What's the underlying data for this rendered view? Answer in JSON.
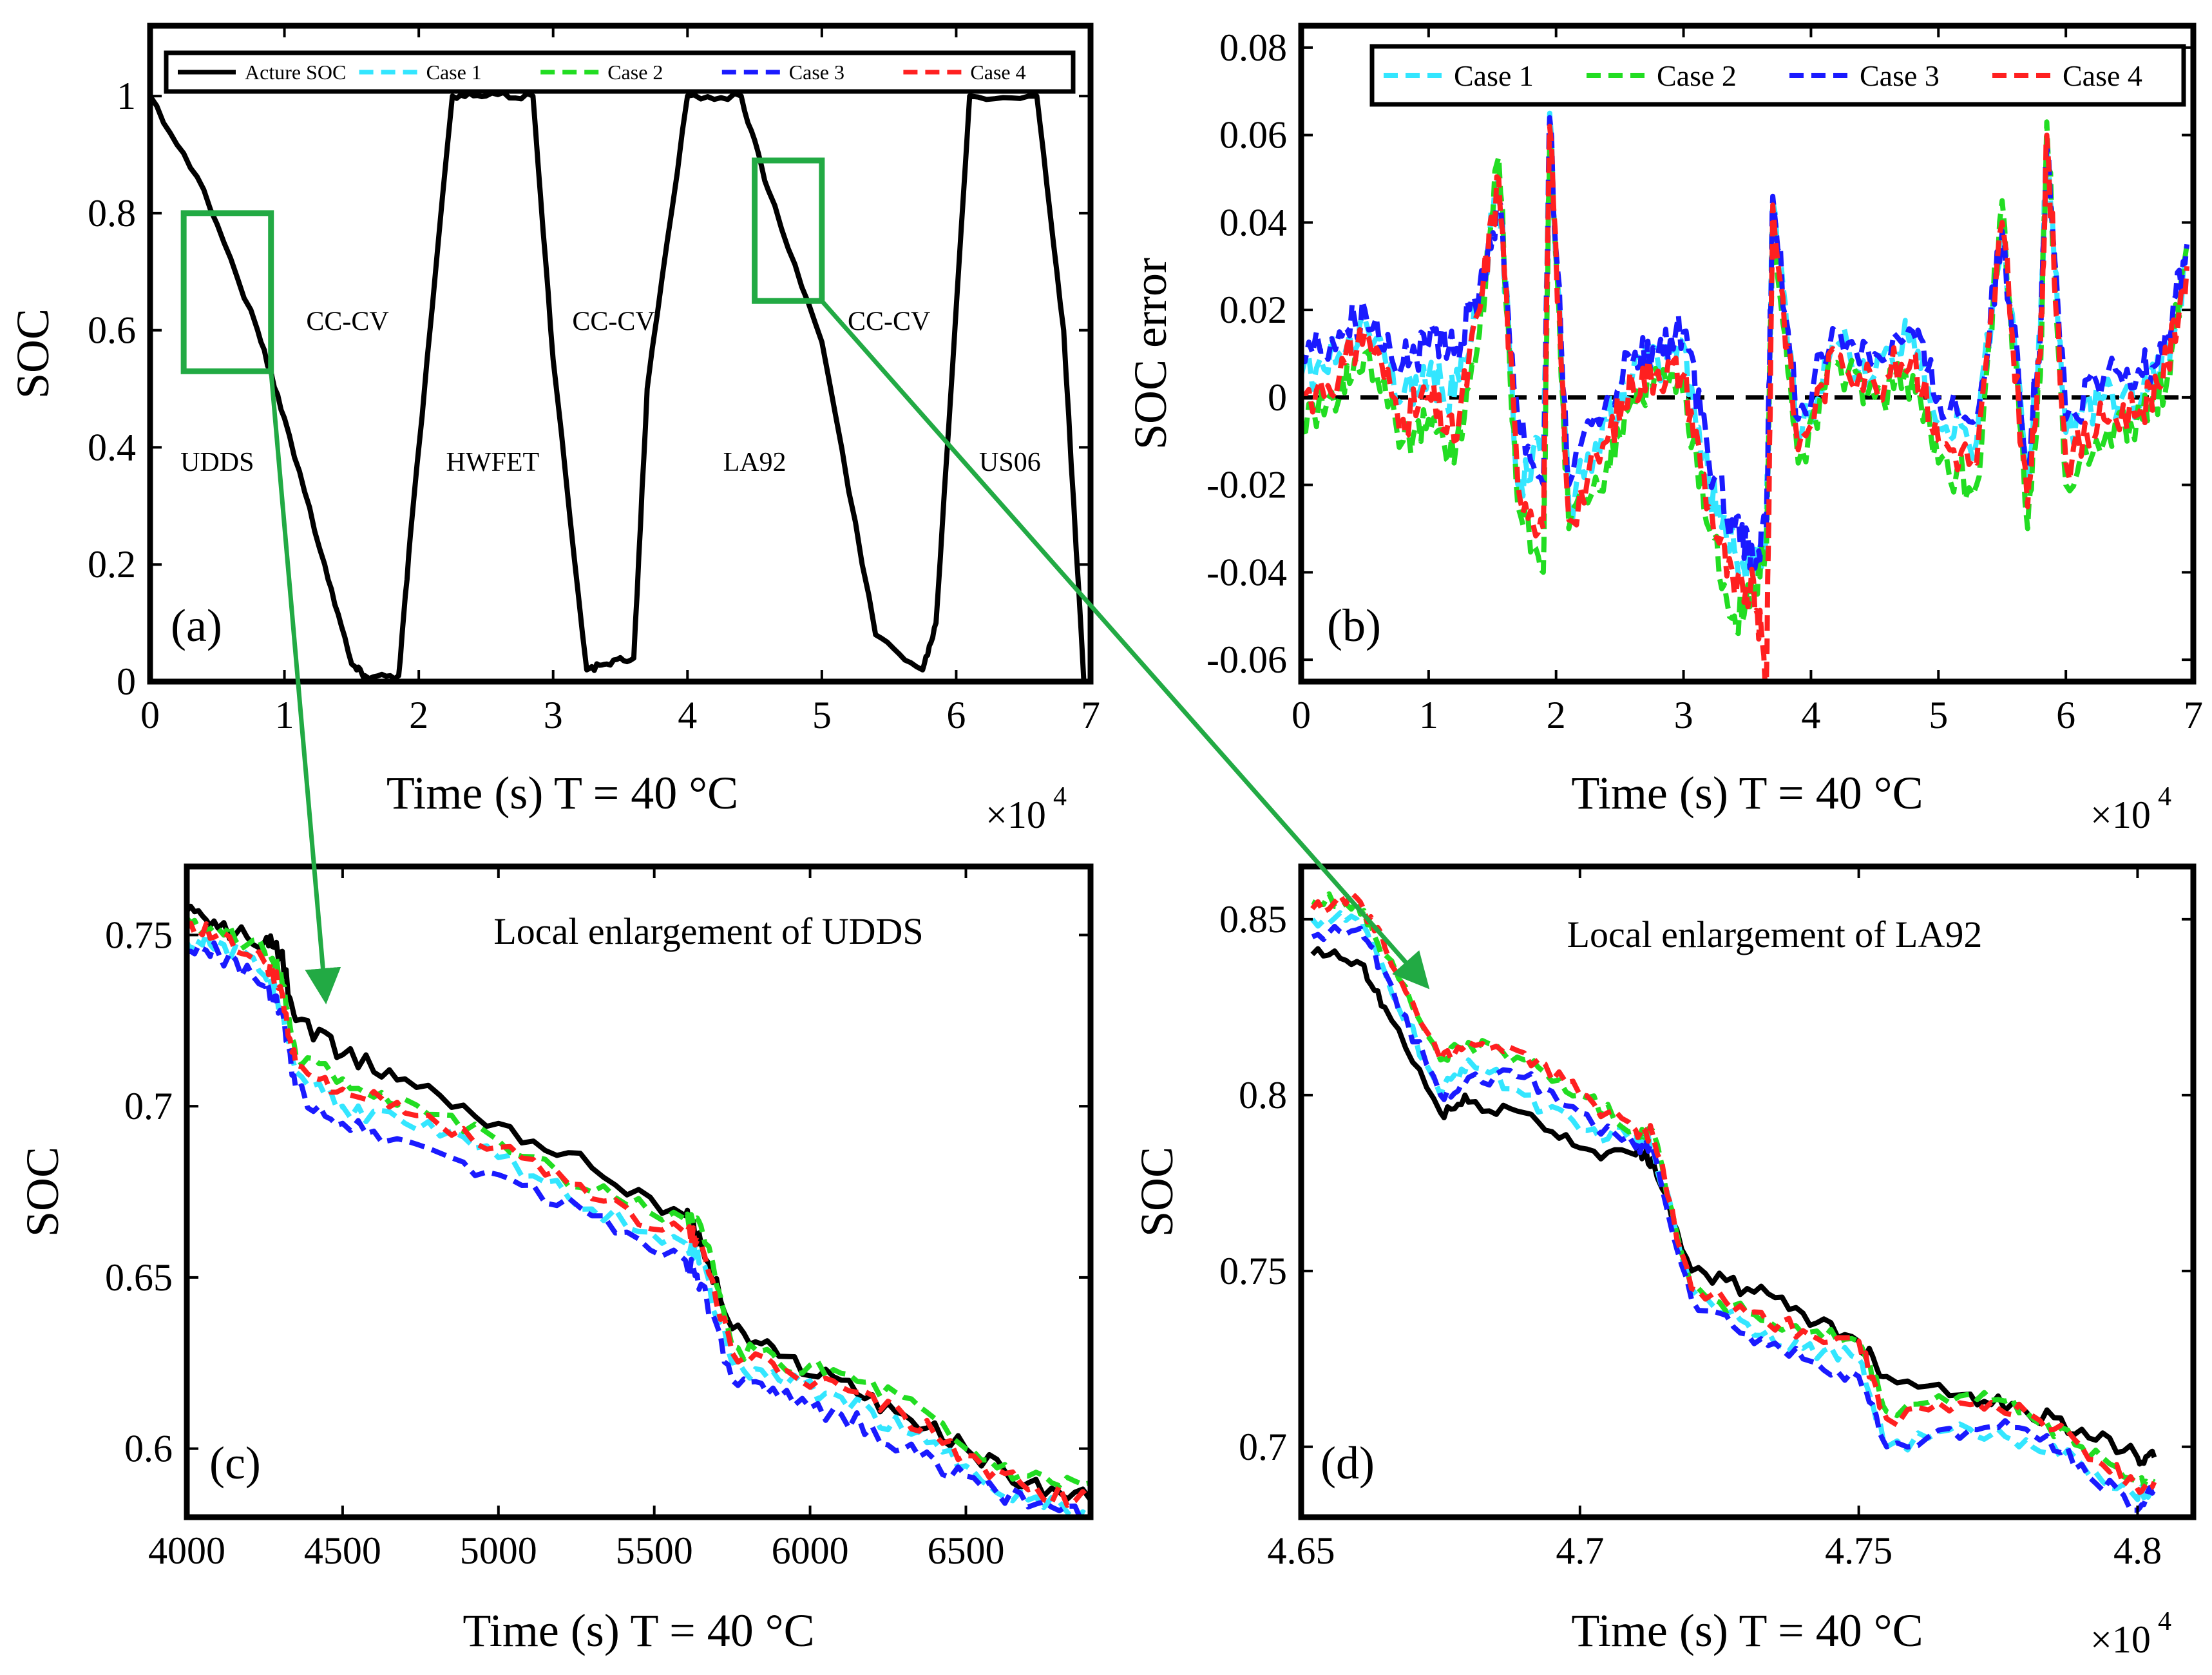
{
  "colors": {
    "actual": "#000000",
    "case1": "#33e6ff",
    "case2": "#22dd22",
    "case3": "#1a1aff",
    "case4": "#ff2020",
    "highlight": "#22aa44"
  },
  "chart_data": [
    {
      "id": "a",
      "type": "line",
      "panel_label": "(a)",
      "xlabel": "Time (s)    T = 40 °C",
      "ylabel": "SOC",
      "x_multiplier": "×10",
      "x_multiplier_exp": "4",
      "xlim": [
        0,
        7
      ],
      "ylim": [
        0,
        1.12
      ],
      "xticks": [
        0,
        1,
        2,
        3,
        4,
        5,
        6,
        7
      ],
      "xtick_labels": [
        "0",
        "1",
        "2",
        "3",
        "4",
        "5",
        "6",
        "7"
      ],
      "yticks": [
        0,
        0.2,
        0.4,
        0.6,
        0.8,
        1
      ],
      "ytick_labels": [
        "0",
        "0.2",
        "0.4",
        "0.6",
        "0.8",
        "1"
      ],
      "legend": [
        "Acture SOC",
        "Case 1",
        "Case 2",
        "Case 3",
        "Case 4"
      ],
      "legend_position": "top",
      "annotations": [
        {
          "text": "UDDS",
          "x": 0.5,
          "y": 0.36
        },
        {
          "text": "CC-CV",
          "x": 1.47,
          "y": 0.6
        },
        {
          "text": "HWFET",
          "x": 2.55,
          "y": 0.36
        },
        {
          "text": "CC-CV",
          "x": 3.45,
          "y": 0.6
        },
        {
          "text": "LA92",
          "x": 4.5,
          "y": 0.36
        },
        {
          "text": "CC-CV",
          "x": 5.5,
          "y": 0.6
        },
        {
          "text": "US06",
          "x": 6.4,
          "y": 0.36
        }
      ],
      "x": [
        0,
        0.4,
        0.8,
        1.0,
        1.3,
        1.5,
        1.6,
        1.85,
        1.95,
        2.25,
        2.5,
        2.85,
        3.0,
        3.25,
        3.4,
        3.6,
        3.7,
        4.0,
        4.4,
        4.6,
        5.0,
        5.4,
        5.75,
        5.85,
        6.1,
        6.6,
        6.8,
        6.95
      ],
      "series": [
        {
          "name": "Acture SOC",
          "values": [
            1.0,
            0.84,
            0.6,
            0.45,
            0.2,
            0.03,
            0.01,
            0.01,
            0.28,
            1.0,
            1.0,
            1.0,
            0.55,
            0.02,
            0.03,
            0.04,
            0.5,
            1.0,
            1.0,
            0.84,
            0.58,
            0.08,
            0.02,
            0.1,
            1.0,
            1.0,
            0.6,
            0.0
          ]
        }
      ]
    },
    {
      "id": "b",
      "type": "line",
      "panel_label": "(b)",
      "xlabel": "Time (s)    T = 40 °C",
      "ylabel": "SOC error",
      "x_multiplier": "×10",
      "x_multiplier_exp": "4",
      "xlim": [
        0,
        7
      ],
      "ylim": [
        -0.065,
        0.085
      ],
      "xticks": [
        0,
        1,
        2,
        3,
        4,
        5,
        6,
        7
      ],
      "xtick_labels": [
        "0",
        "1",
        "2",
        "3",
        "4",
        "5",
        "6",
        "7"
      ],
      "yticks": [
        -0.06,
        -0.04,
        -0.02,
        0,
        0.02,
        0.04,
        0.06,
        0.08
      ],
      "ytick_labels": [
        "-0.06",
        "-0.04",
        "-0.02",
        "0",
        "0.02",
        "0.04",
        "0.06",
        "0.08"
      ],
      "legend": [
        "Case 1",
        "Case 2",
        "Case 3",
        "Case 4"
      ],
      "legend_position": "top",
      "x": [
        0,
        0.3,
        0.5,
        0.8,
        1.0,
        1.2,
        1.4,
        1.55,
        1.7,
        1.9,
        1.95,
        2.1,
        2.4,
        2.6,
        2.8,
        3.0,
        3.2,
        3.4,
        3.55,
        3.65,
        3.7,
        3.9,
        4.2,
        4.5,
        4.8,
        5.0,
        5.3,
        5.5,
        5.7,
        5.8,
        5.85,
        6.0,
        6.3,
        6.6,
        6.8,
        6.95
      ],
      "series": [
        {
          "name": "Case 1",
          "values": [
            0.005,
            0.01,
            0.018,
            0.0,
            0.005,
            0.0,
            0.02,
            0.05,
            -0.02,
            -0.01,
            0.065,
            -0.025,
            -0.005,
            0.005,
            0.008,
            0.012,
            -0.02,
            -0.035,
            -0.04,
            -0.03,
            0.045,
            -0.01,
            0.013,
            0.005,
            0.015,
            -0.005,
            -0.01,
            0.04,
            -0.02,
            0.015,
            0.058,
            -0.008,
            0.0,
            0.0,
            0.01,
            0.03
          ]
        },
        {
          "name": "Case 2",
          "values": [
            -0.005,
            0.0,
            0.01,
            -0.01,
            -0.005,
            -0.015,
            0.015,
            0.055,
            -0.025,
            -0.04,
            0.06,
            -0.03,
            -0.015,
            0.0,
            0.005,
            0.0,
            -0.03,
            -0.05,
            -0.045,
            -0.035,
            0.04,
            -0.015,
            0.008,
            0.0,
            0.005,
            -0.015,
            -0.02,
            0.045,
            -0.03,
            0.005,
            0.063,
            -0.02,
            -0.01,
            -0.005,
            0.005,
            0.035
          ]
        },
        {
          "name": "Case 3",
          "values": [
            0.01,
            0.015,
            0.02,
            0.008,
            0.012,
            0.01,
            0.025,
            0.045,
            -0.005,
            -0.02,
            0.064,
            -0.02,
            0.0,
            0.008,
            0.01,
            0.015,
            -0.015,
            -0.03,
            -0.038,
            -0.03,
            0.046,
            -0.005,
            0.015,
            0.01,
            0.015,
            0.0,
            -0.005,
            0.038,
            -0.015,
            0.015,
            0.057,
            -0.005,
            0.005,
            0.005,
            0.015,
            0.035
          ]
        },
        {
          "name": "Case 4",
          "values": [
            0.0,
            0.005,
            0.015,
            -0.005,
            0.0,
            -0.01,
            0.02,
            0.05,
            -0.02,
            -0.03,
            0.062,
            -0.028,
            -0.01,
            0.003,
            0.006,
            0.005,
            -0.025,
            -0.045,
            -0.042,
            -0.065,
            0.044,
            -0.012,
            0.01,
            0.003,
            0.01,
            -0.01,
            -0.015,
            0.04,
            -0.025,
            0.01,
            0.06,
            -0.015,
            -0.005,
            -0.002,
            0.008,
            0.03
          ]
        }
      ]
    },
    {
      "id": "c",
      "type": "line",
      "panel_label": "(c)",
      "title": "Local enlargement of UDDS",
      "xlabel": "Time (s)    T = 40 °C",
      "ylabel": "SOC",
      "xlim": [
        4000,
        6900
      ],
      "ylim": [
        0.58,
        0.77
      ],
      "xticks": [
        4000,
        4500,
        5000,
        5500,
        6000,
        6500
      ],
      "xtick_labels": [
        "4000",
        "4500",
        "5000",
        "5500",
        "6000",
        "6500"
      ],
      "yticks": [
        0.6,
        0.65,
        0.7,
        0.75
      ],
      "ytick_labels": [
        "0.6",
        "0.65",
        "0.7",
        "0.75"
      ],
      "x": [
        4000,
        4100,
        4250,
        4300,
        4350,
        4500,
        4700,
        5000,
        5300,
        5600,
        5650,
        5750,
        5900,
        6100,
        6300,
        6500,
        6700,
        6900
      ],
      "series": [
        {
          "name": "Acture SOC",
          "values": [
            0.757,
            0.752,
            0.748,
            0.745,
            0.725,
            0.715,
            0.708,
            0.695,
            0.682,
            0.668,
            0.66,
            0.635,
            0.627,
            0.62,
            0.61,
            0.6,
            0.59,
            0.585
          ]
        },
        {
          "name": "Case 1",
          "values": [
            0.748,
            0.748,
            0.738,
            0.73,
            0.71,
            0.7,
            0.695,
            0.685,
            0.67,
            0.66,
            0.655,
            0.625,
            0.62,
            0.615,
            0.605,
            0.595,
            0.585,
            0.58
          ]
        },
        {
          "name": "Case 2",
          "values": [
            0.755,
            0.752,
            0.745,
            0.74,
            0.715,
            0.708,
            0.702,
            0.69,
            0.675,
            0.667,
            0.665,
            0.63,
            0.625,
            0.622,
            0.615,
            0.6,
            0.592,
            0.59
          ]
        },
        {
          "name": "Case 3",
          "values": [
            0.745,
            0.745,
            0.735,
            0.728,
            0.705,
            0.695,
            0.69,
            0.68,
            0.668,
            0.655,
            0.648,
            0.62,
            0.615,
            0.61,
            0.6,
            0.592,
            0.583,
            0.58
          ]
        },
        {
          "name": "Case 4",
          "values": [
            0.752,
            0.75,
            0.742,
            0.735,
            0.712,
            0.705,
            0.698,
            0.688,
            0.673,
            0.663,
            0.66,
            0.628,
            0.622,
            0.618,
            0.61,
            0.598,
            0.588,
            0.585
          ]
        }
      ]
    },
    {
      "id": "d",
      "type": "line",
      "panel_label": "(d)",
      "title": "Local enlargement of LA92",
      "xlabel": "Time (s)    T = 40 °C",
      "ylabel": "SOC",
      "x_multiplier": "×10",
      "x_multiplier_exp": "4",
      "xlim": [
        4.65,
        4.81
      ],
      "ylim": [
        0.68,
        0.865
      ],
      "xticks": [
        4.65,
        4.7,
        4.75,
        4.8
      ],
      "xtick_labels": [
        "4.65",
        "4.7",
        "4.75",
        "4.8"
      ],
      "yticks": [
        0.7,
        0.75,
        0.8,
        0.85
      ],
      "ytick_labels": [
        "0.7",
        "0.75",
        "0.8",
        "0.85"
      ],
      "x": [
        4.652,
        4.66,
        4.665,
        4.675,
        4.68,
        4.69,
        4.7,
        4.71,
        4.713,
        4.72,
        4.73,
        4.74,
        4.75,
        4.755,
        4.77,
        4.78,
        4.79,
        4.8,
        4.803
      ],
      "series": [
        {
          "name": "Acture SOC",
          "values": [
            0.84,
            0.838,
            0.825,
            0.795,
            0.798,
            0.795,
            0.785,
            0.783,
            0.782,
            0.75,
            0.745,
            0.738,
            0.73,
            0.72,
            0.715,
            0.71,
            0.705,
            0.697,
            0.697
          ]
        },
        {
          "name": "Case 1",
          "values": [
            0.85,
            0.85,
            0.835,
            0.8,
            0.81,
            0.8,
            0.79,
            0.788,
            0.786,
            0.745,
            0.735,
            0.728,
            0.725,
            0.7,
            0.705,
            0.702,
            0.695,
            0.685,
            0.69
          ]
        },
        {
          "name": "Case 2",
          "values": [
            0.855,
            0.855,
            0.84,
            0.81,
            0.815,
            0.81,
            0.8,
            0.79,
            0.79,
            0.745,
            0.738,
            0.732,
            0.73,
            0.71,
            0.715,
            0.71,
            0.7,
            0.69,
            0.69
          ]
        },
        {
          "name": "Case 3",
          "values": [
            0.845,
            0.847,
            0.835,
            0.8,
            0.805,
            0.805,
            0.795,
            0.785,
            0.785,
            0.742,
            0.732,
            0.725,
            0.72,
            0.7,
            0.705,
            0.705,
            0.695,
            0.682,
            0.688
          ]
        },
        {
          "name": "Case 4",
          "values": [
            0.853,
            0.856,
            0.842,
            0.81,
            0.815,
            0.812,
            0.8,
            0.79,
            0.789,
            0.745,
            0.738,
            0.733,
            0.73,
            0.708,
            0.712,
            0.71,
            0.7,
            0.688,
            0.69
          ]
        }
      ]
    }
  ]
}
